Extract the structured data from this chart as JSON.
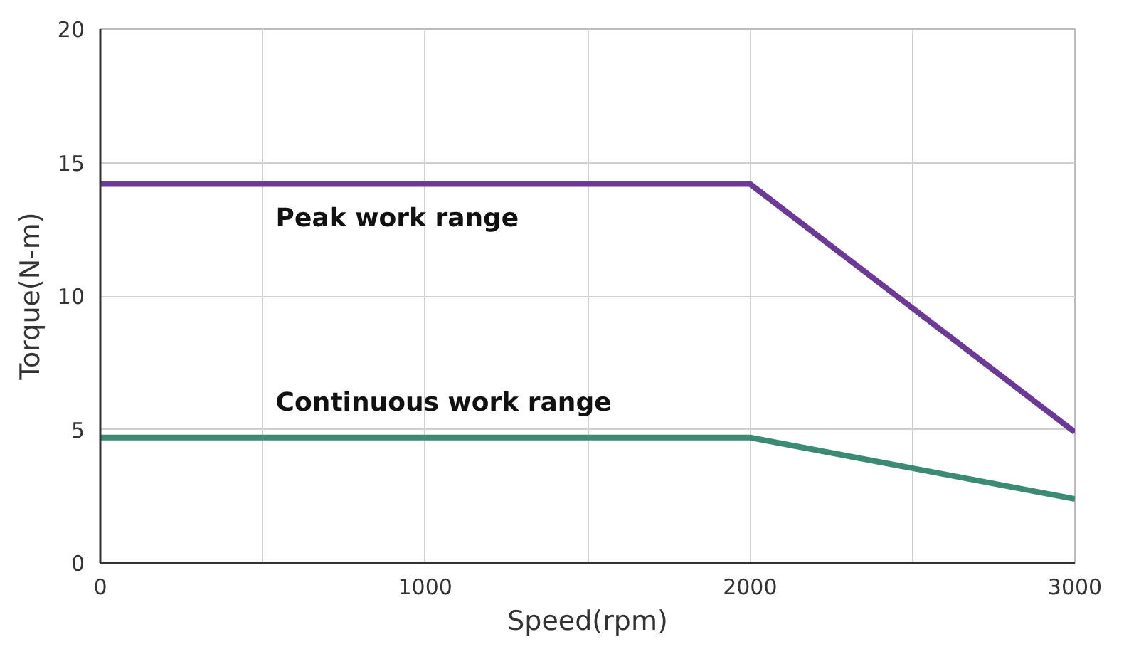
{
  "chart_data": {
    "type": "line",
    "xlabel": "Speed(rpm)",
    "ylabel": "Torque(N-m)",
    "x": [
      0,
      2000,
      3000
    ],
    "series": [
      {
        "name": "Peak work range",
        "color": "#6b3a96",
        "values": [
          14.2,
          14.2,
          4.9
        ]
      },
      {
        "name": "Continuous work range",
        "color": "#3a8a74",
        "values": [
          4.7,
          4.7,
          2.4
        ]
      }
    ],
    "xlim": [
      0,
      3000
    ],
    "ylim": [
      0,
      20
    ],
    "xticks": [
      0,
      {
        "value": 500,
        "label": null
      },
      1000,
      {
        "value": 1500,
        "label": null
      },
      2000,
      {
        "value": 2500,
        "label": null
      },
      3000
    ],
    "yticks": [
      0,
      5,
      10,
      15,
      20
    ],
    "grid": true,
    "marker": "none",
    "line_style": "solid"
  }
}
